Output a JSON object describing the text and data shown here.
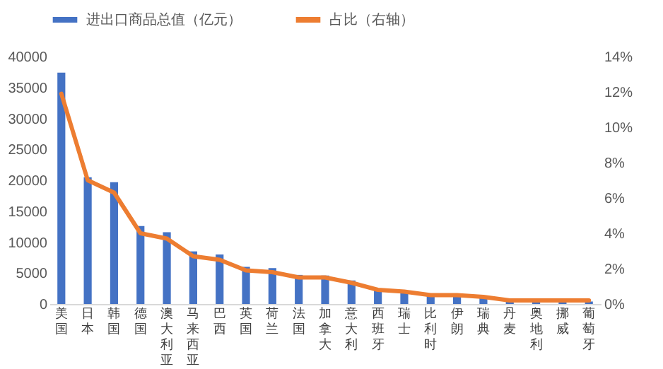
{
  "chart_data": {
    "type": "bar",
    "categories": [
      "美国",
      "日本",
      "韩国",
      "德国",
      "澳大利亚",
      "马来西亚",
      "巴西",
      "英国",
      "荷兰",
      "法国",
      "加拿大",
      "意大利",
      "西班牙",
      "瑞士",
      "比利时",
      "伊朗",
      "瑞典",
      "丹麦",
      "奥地利",
      "挪威",
      "葡萄牙"
    ],
    "series": [
      {
        "name": "进出口商品总值（亿元）",
        "color": "#4472c4",
        "values": [
          37400,
          20500,
          19700,
          12600,
          11600,
          8500,
          8000,
          6000,
          5800,
          4700,
          4600,
          3800,
          2500,
          2100,
          1600,
          1500,
          1100,
          700,
          600,
          500,
          400
        ]
      },
      {
        "name": "占比（右轴）",
        "type": "line",
        "axis": "y2",
        "color": "#ed7d31",
        "values": [
          11.9,
          7.0,
          6.3,
          4.0,
          3.7,
          2.7,
          2.5,
          1.9,
          1.8,
          1.5,
          1.5,
          1.2,
          0.8,
          0.7,
          0.5,
          0.5,
          0.4,
          0.2,
          0.2,
          0.2,
          0.2
        ]
      }
    ],
    "ylim": [
      0,
      40000
    ],
    "yticks": [
      0,
      5000,
      10000,
      15000,
      20000,
      25000,
      30000,
      35000,
      40000
    ],
    "y2lim": [
      0,
      14
    ],
    "y2ticks": [
      {
        "value": 0,
        "label": "0%"
      },
      {
        "value": 2,
        "label": "2%"
      },
      {
        "value": 4,
        "label": "4%"
      },
      {
        "value": 6,
        "label": "6%"
      },
      {
        "value": 8,
        "label": "8%"
      },
      {
        "value": 10,
        "label": "10%"
      },
      {
        "value": 12,
        "label": "12%"
      },
      {
        "value": 14,
        "label": "14%"
      }
    ],
    "legend": "top",
    "grid": false
  }
}
